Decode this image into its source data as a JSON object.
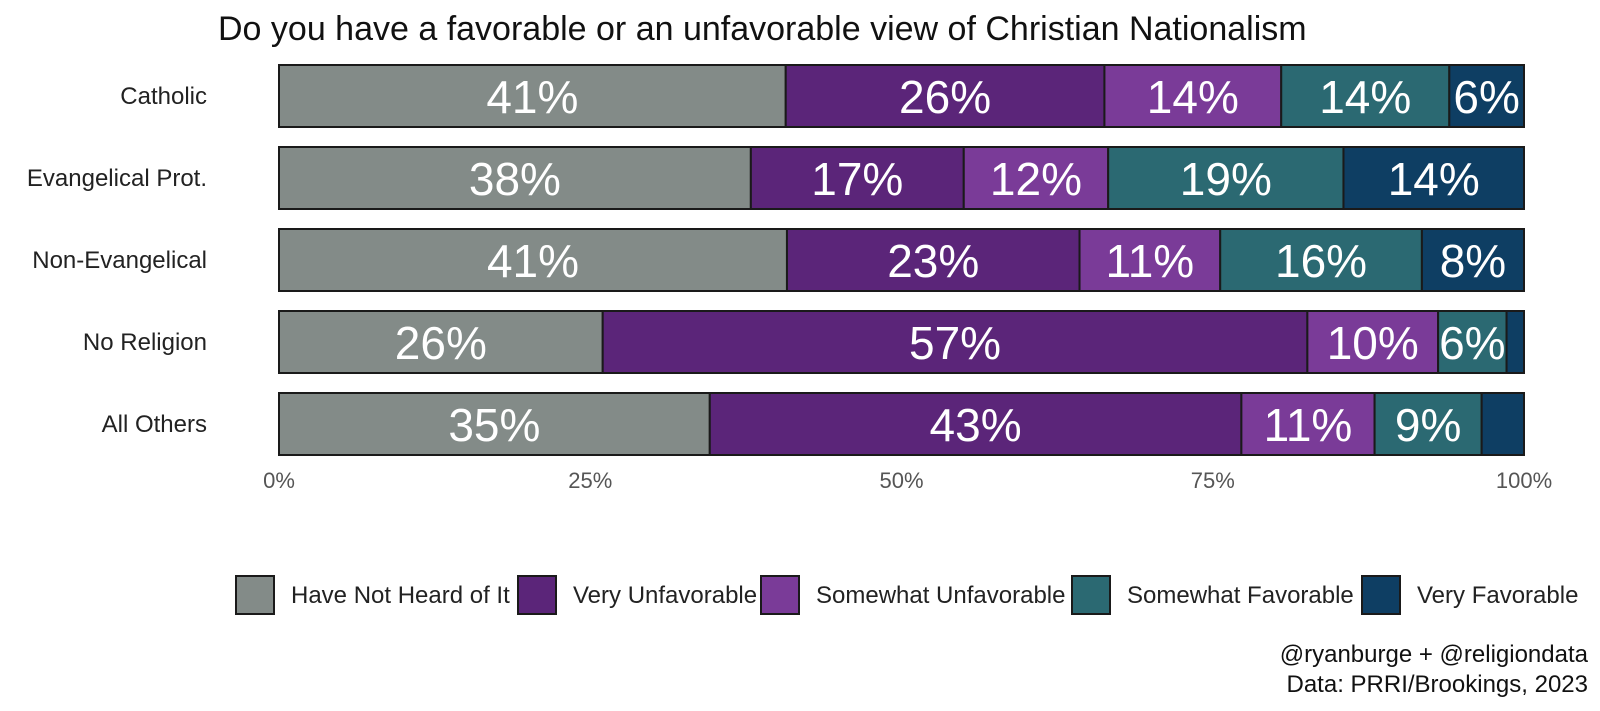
{
  "chart_data": {
    "type": "bar",
    "orientation": "horizontal",
    "stacked": true,
    "title": "Do you have a favorable or an unfavorable view of Christian Nationalism",
    "categories": [
      "Catholic",
      "Evangelical Prot.",
      "Non-Evangelical",
      "No Religion",
      "All Others"
    ],
    "series": [
      {
        "name": "Have Not Heard of It",
        "color": "#838b88",
        "values": [
          40.7,
          37.9,
          40.8,
          26.0,
          34.6
        ],
        "labels": [
          "41%",
          "38%",
          "41%",
          "26%",
          "35%"
        ]
      },
      {
        "name": "Very Unfavorable",
        "color": "#5b2579",
        "values": [
          25.6,
          17.1,
          23.5,
          56.6,
          42.7
        ],
        "labels": [
          "26%",
          "17%",
          "23%",
          "57%",
          "43%"
        ]
      },
      {
        "name": "Somewhat Unfavorable",
        "color": "#7a3b98",
        "values": [
          14.2,
          11.6,
          11.3,
          10.5,
          10.7
        ],
        "labels": [
          "14%",
          "12%",
          "11%",
          "10%",
          "11%"
        ]
      },
      {
        "name": "Somewhat Favorable",
        "color": "#2b6972",
        "values": [
          13.5,
          18.9,
          16.2,
          5.5,
          8.6
        ],
        "labels": [
          "14%",
          "19%",
          "16%",
          "6%",
          "9%"
        ]
      },
      {
        "name": "Very Favorable",
        "color": "#0e3e63",
        "values": [
          6.0,
          14.5,
          8.2,
          1.4,
          3.4
        ],
        "labels": [
          "6%",
          "14%",
          "8%",
          "",
          ""
        ]
      }
    ],
    "xaxis": {
      "ticks": [
        0,
        25,
        50,
        75,
        100
      ],
      "tick_labels": [
        "0%",
        "25%",
        "50%",
        "75%",
        "100%"
      ],
      "range": [
        0,
        100
      ]
    },
    "xlabel": "",
    "ylabel": "",
    "legend": {
      "position": "bottom"
    },
    "grid": false
  },
  "caption": {
    "line1": "@ryanburge + @religiondata",
    "line2": "Data: PRRI/Brookings, 2023"
  }
}
